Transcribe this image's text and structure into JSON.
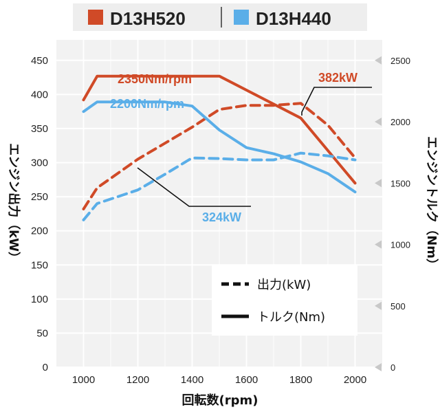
{
  "chart_data": {
    "type": "line",
    "legend": [
      {
        "label": "D13H520",
        "color": "#d04a27"
      },
      {
        "label": "D13H440",
        "color": "#5aaee8"
      }
    ],
    "style_legend": [
      {
        "label": "出力(kW)",
        "style": "dashed"
      },
      {
        "label": "トルク(Nm)",
        "style": "solid"
      }
    ],
    "xlabel": "回転数(rpm)",
    "ylabel_left": "エンジン出力（kW）",
    "ylabel_right": "エンジントルク（Nm）",
    "xlim": [
      900,
      2100
    ],
    "ylim_left": [
      0,
      480
    ],
    "ylim_right": [
      0,
      2667
    ],
    "xticks": [
      1000,
      1200,
      1400,
      1600,
      1800,
      2000
    ],
    "yticks_left": [
      0,
      50,
      100,
      150,
      200,
      250,
      300,
      350,
      400,
      450
    ],
    "yticks_right": [
      0,
      500,
      1000,
      1500,
      2000,
      2500
    ],
    "grid": true,
    "series": [
      {
        "name": "D13H520",
        "kind": "torque",
        "axis": "right",
        "color": "#d04a27",
        "x": [
          1000,
          1050,
          1500,
          1800,
          2000
        ],
        "y": [
          2178,
          2372,
          2372,
          2030,
          1500
        ]
      },
      {
        "name": "D13H520",
        "kind": "power",
        "axis": "left",
        "color": "#d04a27",
        "x": [
          1000,
          1050,
          1200,
          1400,
          1500,
          1600,
          1700,
          1800,
          1900,
          2000
        ],
        "y": [
          232,
          263,
          305,
          352,
          378,
          384,
          384,
          387,
          355,
          307
        ]
      },
      {
        "name": "D13H440",
        "kind": "torque",
        "axis": "right",
        "color": "#5aaee8",
        "x": [
          1000,
          1050,
          1300,
          1400,
          1500,
          1600,
          1700,
          1800,
          1900,
          2000
        ],
        "y": [
          2083,
          2161,
          2161,
          2128,
          1933,
          1789,
          1739,
          1673,
          1578,
          1428
        ]
      },
      {
        "name": "D13H440",
        "kind": "power",
        "axis": "left",
        "color": "#5aaee8",
        "x": [
          1000,
          1050,
          1200,
          1300,
          1400,
          1500,
          1600,
          1700,
          1800,
          1900,
          2000
        ],
        "y": [
          216,
          240,
          260,
          283,
          307,
          306,
          304,
          304,
          314,
          310,
          304
        ]
      }
    ],
    "annotations": [
      {
        "text": "2350Nm/rpm",
        "color": "#d04a27"
      },
      {
        "text": "2200Nm/rpm",
        "color": "#5aaee8"
      },
      {
        "text": "382kW",
        "color": "#d04a27"
      },
      {
        "text": "324kW",
        "color": "#5aaee8"
      }
    ]
  }
}
